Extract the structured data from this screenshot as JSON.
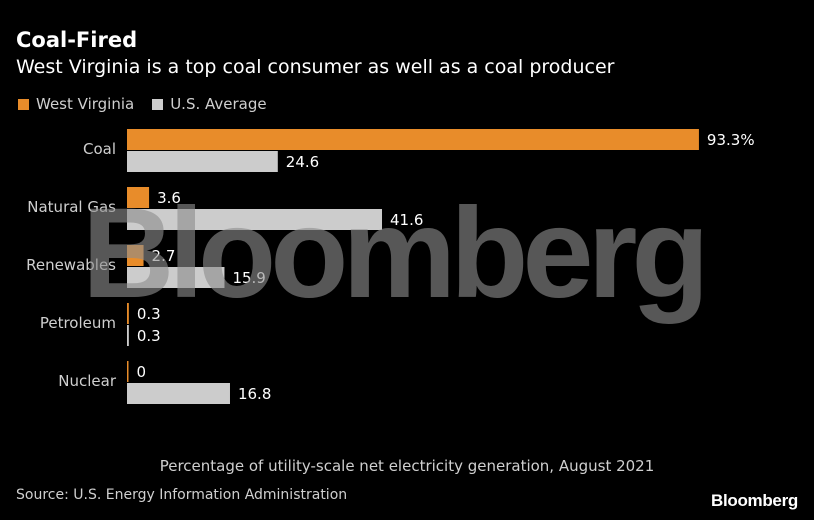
{
  "header": {
    "title": "Coal-Fired",
    "subtitle": "West Virginia is a top coal consumer as well as a coal producer"
  },
  "legend": {
    "items": [
      {
        "label": "West Virginia",
        "color": "#e88c2a"
      },
      {
        "label": "U.S. Average",
        "color": "#cccccc"
      }
    ]
  },
  "chart_data": {
    "type": "bar",
    "orientation": "horizontal",
    "categories": [
      "Coal",
      "Natural Gas",
      "Renewables",
      "Petroleum",
      "Nuclear"
    ],
    "series": [
      {
        "name": "West Virginia",
        "values": [
          93.3,
          3.6,
          2.7,
          0.3,
          0
        ],
        "labels": [
          "93.3%",
          "3.6",
          "2.7",
          "0.3",
          "0"
        ],
        "color": "#e88c2a"
      },
      {
        "name": "U.S. Average",
        "values": [
          24.6,
          41.6,
          15.9,
          0.3,
          16.8
        ],
        "labels": [
          "24.6",
          "41.6",
          "15.9",
          "0.3",
          "16.8"
        ],
        "color": "#cccccc"
      }
    ],
    "xlim": [
      0,
      100
    ],
    "grid": false,
    "legend_position": "top-left"
  },
  "footer": {
    "note": "Percentage of utility-scale net electricity generation, August 2021",
    "source": "Source: U.S. Energy Information Administration",
    "brand": "Bloomberg"
  },
  "watermark": {
    "text": "Bloomberg"
  }
}
